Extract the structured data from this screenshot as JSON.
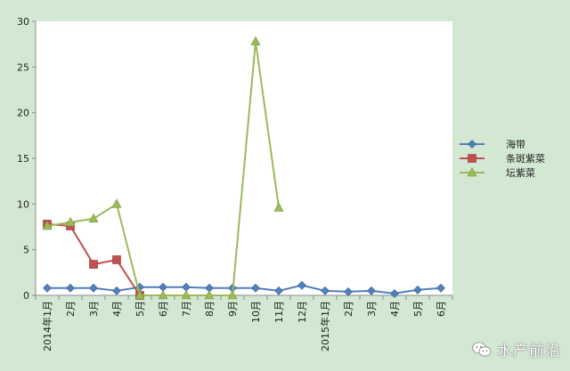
{
  "chart_data": {
    "type": "line",
    "title": "",
    "xlabel": "",
    "ylabel": "",
    "ylim": [
      0,
      30
    ],
    "yticks": [
      0,
      5,
      10,
      15,
      20,
      25,
      30
    ],
    "grid": false,
    "legend_position": "right",
    "categories": [
      "2014年1月",
      "2月",
      "3月",
      "4月",
      "5月",
      "6月",
      "7月",
      "8月",
      "9月",
      "10月",
      "11月",
      "12月",
      "2015年1月",
      "2月",
      "3月",
      "4月",
      "5月",
      "6月"
    ],
    "series": [
      {
        "name": "海带",
        "color": "#4f81bd",
        "marker": "diamond",
        "values": [
          0.8,
          0.8,
          0.8,
          0.5,
          0.9,
          0.9,
          0.9,
          0.8,
          0.8,
          0.8,
          0.5,
          1.1,
          0.5,
          0.4,
          0.5,
          0.2,
          0.6,
          0.8
        ]
      },
      {
        "name": "条斑紫菜",
        "color": "#c0504d",
        "marker": "square",
        "values": [
          7.8,
          7.6,
          3.4,
          3.9,
          0,
          null,
          null,
          null,
          null,
          null,
          null,
          null,
          null,
          null,
          null,
          null,
          null,
          null
        ]
      },
      {
        "name": "坛紫菜",
        "color": "#9bbb59",
        "marker": "triangle",
        "values": [
          7.6,
          8.0,
          8.4,
          10.0,
          0,
          0,
          0,
          0,
          0,
          27.8,
          9.6,
          null,
          null,
          null,
          null,
          null,
          null,
          null
        ]
      }
    ]
  },
  "watermark": {
    "text": "水产前沿",
    "icon": "wechat-icon"
  }
}
